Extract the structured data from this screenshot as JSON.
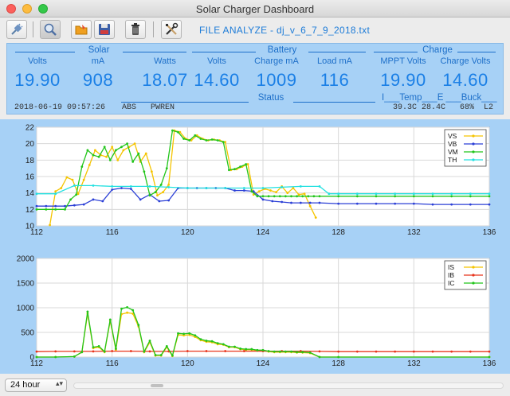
{
  "window": {
    "title": "Solar Charger Dashboard"
  },
  "toolbar": {
    "file_label": "FILE ANALYZE - dj_v_6_7_9_2018.txt",
    "buttons": [
      {
        "name": "connect-button",
        "icon": "plug-icon"
      },
      {
        "name": "analyze-button",
        "icon": "magnifier-icon"
      },
      {
        "name": "open-file-button",
        "icon": "folder-icon"
      },
      {
        "name": "save-button",
        "icon": "floppy-icon"
      },
      {
        "name": "delete-button",
        "icon": "trash-icon"
      },
      {
        "name": "settings-button",
        "icon": "tools-icon"
      }
    ]
  },
  "panel": {
    "solar": {
      "title": "Solar",
      "volts_label": "Volts",
      "ma_label": "mA",
      "watts_label": "Watts",
      "volts": "19.90",
      "ma": "908",
      "watts": "18.07"
    },
    "battery": {
      "title": "Battery",
      "volts_label": "Volts",
      "charge_label": "Charge mA",
      "load_label": "Load mA",
      "volts": "14.60",
      "charge": "1009",
      "load": "116"
    },
    "charge": {
      "title": "Charge",
      "mppt_label": "MPPT Volts",
      "cv_label": "Charge Volts",
      "mppt": "19.90",
      "cv": "14.60"
    },
    "timestamp": "2018-06-19 09:57:26",
    "status": {
      "title": "Status",
      "flags": "ABS   PWREN"
    },
    "temp_header": "I___Temp___E ___Buck___",
    "temp_values": "39.3C 28.4C   68%  L2"
  },
  "colors": {
    "vs": "#f5c400",
    "vb": "#2b3fd6",
    "vm": "#22c51a",
    "th": "#22e0e0",
    "is": "#f5c400",
    "ib": "#e8341c",
    "ic": "#22c51a"
  },
  "chart_data": [
    {
      "type": "line",
      "ylim": [
        10,
        22
      ],
      "xlim": [
        112,
        136
      ],
      "x_ticks": [
        "112",
        "116",
        "120",
        "124",
        "128",
        "132",
        "136"
      ],
      "y_ticks": [
        "10",
        "12",
        "14",
        "16",
        "18",
        "20",
        "22"
      ],
      "legend": "top-right",
      "series": [
        {
          "name": "VS",
          "x": [
            112.7,
            113.0,
            113.3,
            113.6,
            113.9,
            114.2,
            114.5,
            114.8,
            115.1,
            115.4,
            115.7,
            116.0,
            116.3,
            116.6,
            116.9,
            117.2,
            117.5,
            117.8,
            118.1,
            118.4,
            118.7,
            119.0,
            119.3,
            119.6,
            119.9,
            120.2,
            120.5,
            120.8,
            121.1,
            121.4,
            121.7,
            122.0,
            122.3,
            122.6,
            122.9,
            123.2,
            123.5,
            123.8,
            124.1,
            124.4,
            124.7,
            125.0,
            125.3,
            125.6,
            125.9,
            126.2,
            126.5,
            126.8
          ],
          "y": [
            10.1,
            14.2,
            14.6,
            15.9,
            15.6,
            13.9,
            15.6,
            17.4,
            19.2,
            18.6,
            18.4,
            19.6,
            18.0,
            19.2,
            19.6,
            20.0,
            17.8,
            18.8,
            16.6,
            13.7,
            14.1,
            15.0,
            21.6,
            21.4,
            20.6,
            20.4,
            21.0,
            20.6,
            20.4,
            20.5,
            20.4,
            20.2,
            16.8,
            16.9,
            17.2,
            17.5,
            13.8,
            14.2,
            14.5,
            14.3,
            14.1,
            14.8,
            14.0,
            14.6,
            13.8,
            13.9,
            12.4,
            11.0
          ]
        },
        {
          "name": "VB",
          "x": [
            112.0,
            112.5,
            113.0,
            113.5,
            114.0,
            114.5,
            115.0,
            115.5,
            116.0,
            116.5,
            117.0,
            117.5,
            118.0,
            118.5,
            119.0,
            119.5,
            120.0,
            120.5,
            121.0,
            121.5,
            122.0,
            122.5,
            123.0,
            123.5,
            124.0,
            124.5,
            125.0,
            125.5,
            126.0,
            126.5,
            127.0,
            128.0,
            129.0,
            130.0,
            131.0,
            132.0,
            133.0,
            134.0,
            135.0,
            136.0
          ],
          "y": [
            12.4,
            12.4,
            12.4,
            12.4,
            12.5,
            12.6,
            13.2,
            13.0,
            14.4,
            14.6,
            14.5,
            13.2,
            13.8,
            13.0,
            13.1,
            14.6,
            14.6,
            14.6,
            14.6,
            14.6,
            14.6,
            14.3,
            14.3,
            14.2,
            13.2,
            13.0,
            12.9,
            12.8,
            12.8,
            12.8,
            12.8,
            12.7,
            12.7,
            12.7,
            12.7,
            12.7,
            12.6,
            12.6,
            12.6,
            12.6
          ]
        },
        {
          "name": "VM",
          "x": [
            112.0,
            112.5,
            113.0,
            113.5,
            113.8,
            114.1,
            114.4,
            114.7,
            115.0,
            115.3,
            115.6,
            115.9,
            116.2,
            116.5,
            116.8,
            117.1,
            117.4,
            117.7,
            118.0,
            118.3,
            118.6,
            118.9,
            119.2,
            119.5,
            119.8,
            120.1,
            120.4,
            120.7,
            121.0,
            121.3,
            121.6,
            121.9,
            122.2,
            122.5,
            122.8,
            123.1,
            123.4,
            123.7,
            124.0,
            124.3,
            124.6,
            124.9,
            125.2,
            125.5,
            125.8,
            126.1,
            126.4,
            126.7,
            127.0,
            128.0,
            129.0,
            130.0,
            131.0,
            132.0,
            133.0,
            134.0,
            135.0,
            136.0
          ],
          "y": [
            12.0,
            12.0,
            12.0,
            12.0,
            13.2,
            13.8,
            17.2,
            19.2,
            18.6,
            18.4,
            19.6,
            18.0,
            19.2,
            19.6,
            20.0,
            17.8,
            18.8,
            16.6,
            13.7,
            14.1,
            15.0,
            17.0,
            21.6,
            21.4,
            20.6,
            20.4,
            21.0,
            20.6,
            20.4,
            20.5,
            20.4,
            20.2,
            16.8,
            16.9,
            17.2,
            17.5,
            14.2,
            13.6,
            13.6,
            13.6,
            13.6,
            13.6,
            13.6,
            13.6,
            13.6,
            13.6,
            13.6,
            13.6,
            13.6,
            13.6,
            13.6,
            13.6,
            13.6,
            13.6,
            13.6,
            13.6,
            13.6,
            13.6
          ]
        },
        {
          "name": "TH",
          "x": [
            112.0,
            113.0,
            114.0,
            115.0,
            116.0,
            117.0,
            118.0,
            119.0,
            120.0,
            121.0,
            122.0,
            123.0,
            124.0,
            125.0,
            126.0,
            127.0,
            127.5,
            128.0,
            129.0,
            130.0,
            131.0,
            132.0,
            133.0,
            134.0,
            135.0,
            136.0
          ],
          "y": [
            13.9,
            13.9,
            14.9,
            14.9,
            14.8,
            14.8,
            14.8,
            14.7,
            14.6,
            14.6,
            14.6,
            14.6,
            14.6,
            14.7,
            14.8,
            14.8,
            13.9,
            13.9,
            13.9,
            13.9,
            13.9,
            13.9,
            13.9,
            13.9,
            13.9,
            13.9
          ]
        }
      ]
    },
    {
      "type": "line",
      "ylim": [
        0,
        2000
      ],
      "xlim": [
        112,
        136
      ],
      "x_ticks": [
        "112",
        "116",
        "120",
        "124",
        "128",
        "132",
        "136"
      ],
      "y_ticks": [
        "0",
        "500",
        "1000",
        "1500",
        "2000"
      ],
      "legend": "top-right",
      "series": [
        {
          "name": "IS",
          "x": [
            112.0,
            113.0,
            114.0,
            114.4,
            114.7,
            115.0,
            115.3,
            115.6,
            115.9,
            116.2,
            116.5,
            116.8,
            117.1,
            117.4,
            117.7,
            118.0,
            118.3,
            118.6,
            118.9,
            119.2,
            119.5,
            119.8,
            120.1,
            120.4,
            120.7,
            121.0,
            121.3,
            121.6,
            121.9,
            122.2,
            122.5,
            122.8,
            123.1,
            123.4,
            123.7,
            124.0,
            124.3,
            124.6,
            124.9,
            125.2,
            125.5,
            125.8,
            126.1,
            126.5,
            127.0,
            128.0,
            136.0
          ],
          "y": [
            0,
            0,
            10,
            100,
            880,
            180,
            200,
            100,
            730,
            150,
            870,
            900,
            880,
            620,
            100,
            300,
            30,
            30,
            200,
            20,
            450,
            440,
            450,
            410,
            340,
            310,
            300,
            260,
            250,
            200,
            200,
            160,
            150,
            150,
            130,
            130,
            110,
            100,
            100,
            100,
            100,
            90,
            90,
            80,
            0,
            0,
            0
          ]
        },
        {
          "name": "IB",
          "x": [
            112.0,
            113.0,
            114.0,
            115.0,
            116.0,
            117.0,
            118.0,
            119.0,
            120.0,
            121.0,
            122.0,
            123.0,
            124.0,
            125.0,
            126.0,
            127.0,
            128.0,
            129.0,
            130.0,
            131.0,
            132.0,
            133.0,
            134.0,
            135.0,
            136.0
          ],
          "y": [
            110,
            115,
            115,
            115,
            120,
            120,
            115,
            115,
            120,
            120,
            120,
            120,
            120,
            120,
            120,
            115,
            110,
            110,
            110,
            110,
            110,
            110,
            110,
            110,
            110
          ]
        },
        {
          "name": "IC",
          "x": [
            112.0,
            113.0,
            114.0,
            114.4,
            114.7,
            115.0,
            115.3,
            115.6,
            115.9,
            116.2,
            116.5,
            116.8,
            117.1,
            117.4,
            117.7,
            118.0,
            118.3,
            118.6,
            118.9,
            119.2,
            119.5,
            119.8,
            120.1,
            120.4,
            120.7,
            121.0,
            121.3,
            121.6,
            121.9,
            122.2,
            122.5,
            122.8,
            123.1,
            123.4,
            123.7,
            124.0,
            124.3,
            124.6,
            124.9,
            125.2,
            125.5,
            125.8,
            126.1,
            126.5,
            127.0,
            128.0,
            136.0
          ],
          "y": [
            0,
            0,
            10,
            100,
            920,
            200,
            220,
            110,
            760,
            170,
            980,
            1010,
            950,
            650,
            110,
            330,
            40,
            40,
            220,
            30,
            480,
            470,
            480,
            440,
            360,
            330,
            320,
            280,
            260,
            210,
            210,
            170,
            160,
            160,
            140,
            140,
            120,
            110,
            110,
            110,
            110,
            100,
            100,
            90,
            0,
            0,
            0
          ]
        }
      ]
    }
  ],
  "bottom": {
    "range_value": "24 hour"
  }
}
